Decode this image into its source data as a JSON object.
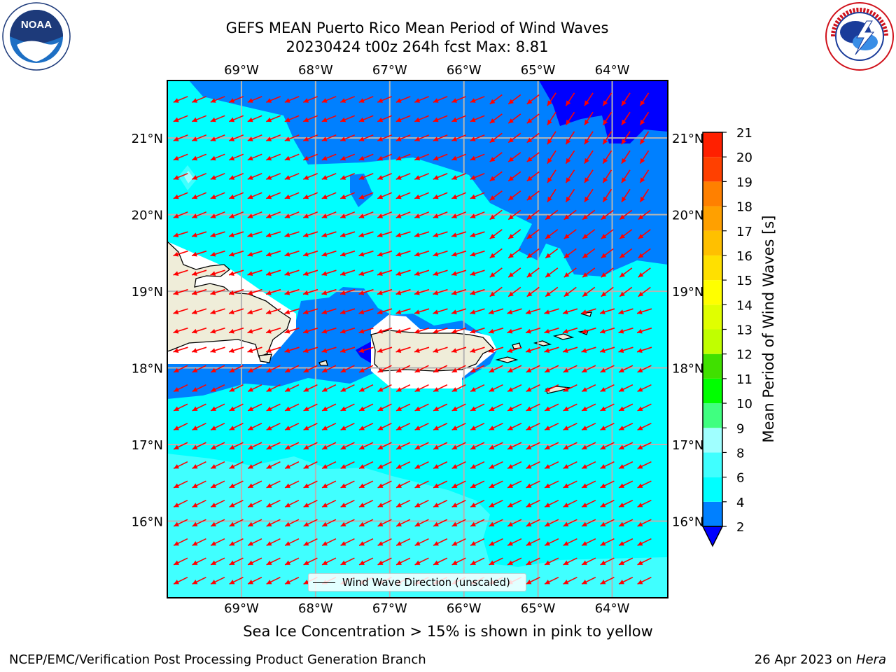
{
  "title": {
    "line1": "GEFS MEAN Puerto Rico Mean Period of Wind Waves",
    "line2": "20230424 t00z 264h fcst   Max: 8.81"
  },
  "logos": {
    "left": "noaa-logo",
    "right": "national-weather-service-logo"
  },
  "map": {
    "lon_labels": [
      "69°W",
      "68°W",
      "67°W",
      "66°W",
      "65°W",
      "64°W"
    ],
    "lat_labels": [
      "21°N",
      "20°N",
      "19°N",
      "18°N",
      "17°N",
      "16°N"
    ],
    "lon_range": [
      -70.0,
      -63.25
    ],
    "lat_range": [
      15.0,
      21.75
    ],
    "grid": true,
    "arrow_color": "#ff0000",
    "land_color": "#efedd9"
  },
  "legend": {
    "label": "Wind Wave Direction (unscaled)",
    "placement": "bottom-center"
  },
  "colorbar": {
    "label": "Mean Period of Wind Waves [s]",
    "ticks": [
      "21",
      "20",
      "19",
      "18",
      "17",
      "16",
      "15",
      "14",
      "13",
      "12",
      "11",
      "10",
      "9",
      "8",
      "6",
      "4",
      "2"
    ],
    "levels": [
      {
        "lo": 2,
        "hi": 4,
        "color": "#0080ff"
      },
      {
        "lo": 4,
        "hi": 6,
        "color": "#00ffff"
      },
      {
        "lo": 6,
        "hi": 8,
        "color": "#40ffff"
      },
      {
        "lo": 8,
        "hi": 9,
        "color": "#a0ffff"
      },
      {
        "lo": 9,
        "hi": 10,
        "color": "#40ff80"
      },
      {
        "lo": 10,
        "hi": 11,
        "color": "#00ff00"
      },
      {
        "lo": 11,
        "hi": 12,
        "color": "#40e000"
      },
      {
        "lo": 12,
        "hi": 13,
        "color": "#c0ff00"
      },
      {
        "lo": 13,
        "hi": 14,
        "color": "#e0ff00"
      },
      {
        "lo": 14,
        "hi": 15,
        "color": "#ffff00"
      },
      {
        "lo": 15,
        "hi": 16,
        "color": "#ffe000"
      },
      {
        "lo": 16,
        "hi": 17,
        "color": "#ffc000"
      },
      {
        "lo": 17,
        "hi": 18,
        "color": "#ffa000"
      },
      {
        "lo": 18,
        "hi": 19,
        "color": "#ff8000"
      },
      {
        "lo": 19,
        "hi": 20,
        "color": "#ff4000"
      },
      {
        "lo": 20,
        "hi": 21,
        "color": "#ff2000"
      }
    ],
    "under_color": "#0000ff"
  },
  "footnote": "Sea Ice Concentration > 15% is shown in pink to yellow",
  "footer": {
    "left": "NCEP/EMC/Verification Post Processing Product Generation Branch",
    "right_date": "26 Apr 2023 on ",
    "right_host": "Hera"
  }
}
